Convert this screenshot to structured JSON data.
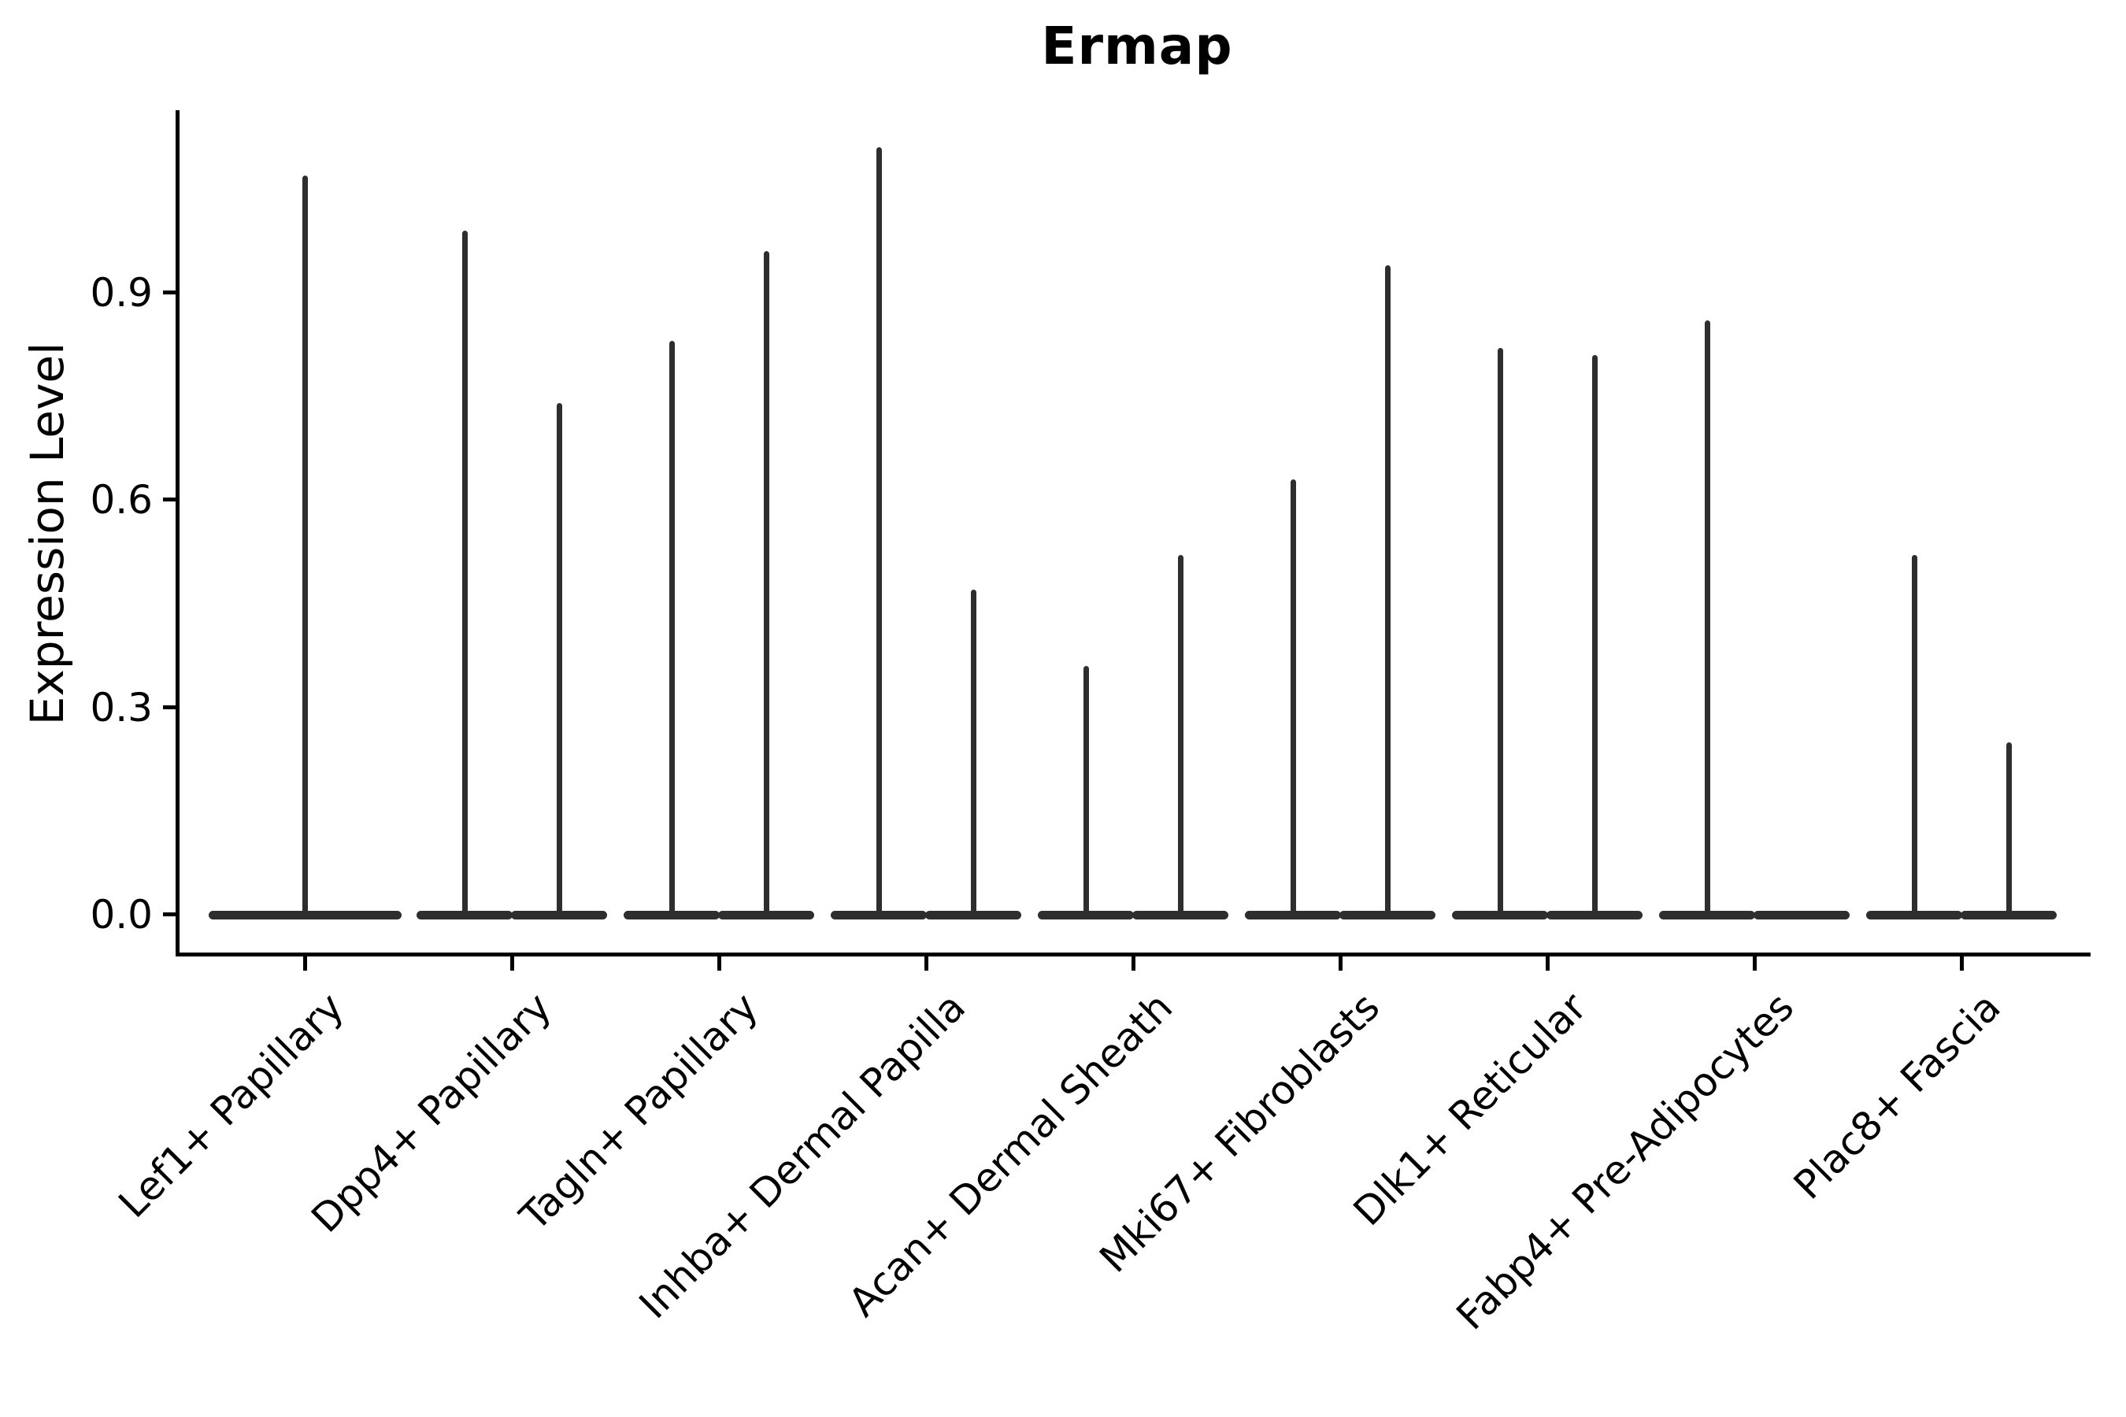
{
  "chart_data": {
    "type": "violin",
    "title": "Ermap",
    "ylabel": "Expression Level",
    "xlabel": "",
    "ytick_labels": [
      "0.0",
      "0.3",
      "0.6",
      "0.9"
    ],
    "ylim": [
      0,
      1.16
    ],
    "grid": false,
    "legend": "none",
    "x_tick_rotation_deg": 45,
    "categories": [
      "Lef1+ Papillary",
      "Dpp4+ Papillary",
      "Tagln+ Papillary",
      "Inhba+ Dermal Papilla",
      "Acan+ Dermal Sheath",
      "Mki67+ Fibroblasts",
      "Dlk1+ Reticular",
      "Fabp4+ Pre-Adipocytes",
      "Plac8+ Fascia"
    ],
    "violins": [
      {
        "category": "Lef1+ Papillary",
        "max_values": [
          1.07
        ]
      },
      {
        "category": "Dpp4+ Papillary",
        "max_values": [
          0.99,
          0.74
        ]
      },
      {
        "category": "Tagln+ Papillary",
        "max_values": [
          0.83,
          0.96
        ]
      },
      {
        "category": "Inhba+ Dermal Papilla",
        "max_values": [
          1.11,
          0.47
        ]
      },
      {
        "category": "Acan+ Dermal Sheath",
        "max_values": [
          0.36,
          0.52
        ]
      },
      {
        "category": "Mki67+ Fibroblasts",
        "max_values": [
          0.63,
          0.94
        ]
      },
      {
        "category": "Dlk1+ Reticular",
        "max_values": [
          0.82,
          0.81
        ]
      },
      {
        "category": "Fabp4+ Pre-Adipocytes",
        "max_values": [
          0.86,
          0.0
        ]
      },
      {
        "category": "Plac8+ Fascia",
        "max_values": [
          0.52,
          0.25
        ]
      }
    ],
    "violin_min_value": 0.0,
    "violin_shape": "thin-spike-with-flat-base-at-zero",
    "colors": {
      "violin": "#2e2e2e",
      "axis": "#000000",
      "text": "#000000",
      "background": "#ffffff"
    }
  }
}
